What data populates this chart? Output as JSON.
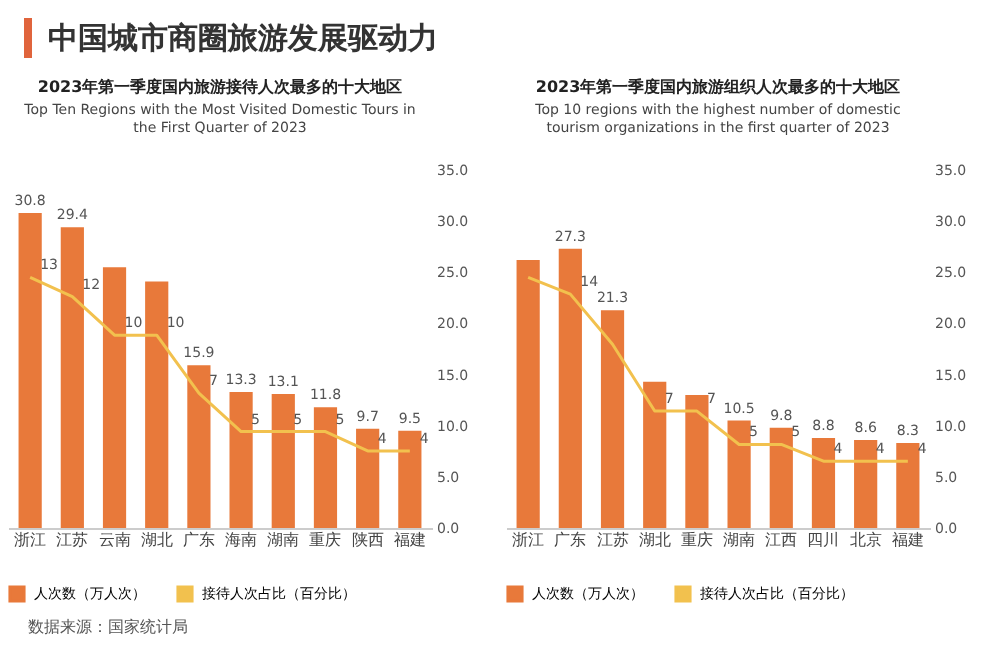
{
  "chart_data": [
    {
      "type": "bar",
      "title": "2023年第一季度国内旅游接待人次最多的十大地区",
      "subtitle": "Top Ten Regions with the Most Visited Domestic Tours in the First Quarter of 2023",
      "annotations": [
        "中国城市商圈旅游发展驱动力",
        "数据来源：国家统计局"
      ],
      "categories": [
        "浙江",
        "江苏",
        "云南",
        "湖北",
        "广东",
        "海南",
        "湖南",
        "重庆",
        "陕西",
        "福建"
      ],
      "series": [
        {
          "name": "人次数（万人次）",
          "color": "#e8793a",
          "values": [
            30.8,
            29.4,
            25.5,
            24.1,
            15.9,
            13.3,
            13.1,
            11.8,
            9.7,
            9.5
          ],
          "value_labels": [
            "30.8",
            "29.4",
            null,
            null,
            "15.9",
            "13.3",
            "13.1",
            "11.8",
            "9.7",
            "9.5"
          ]
        },
        {
          "type": "line",
          "axis": "y2",
          "name": "接待人次占比（百分比）",
          "color": "#f2c14e",
          "values": [
            13,
            12,
            10,
            10,
            7,
            5,
            5,
            5,
            4,
            4
          ],
          "value_labels": [
            "13",
            "12",
            "10",
            "10",
            "7",
            "5",
            "5",
            "5",
            "4",
            "4"
          ]
        }
      ],
      "ylim": [
        0,
        35
      ],
      "yticks": [
        {
          "value": 0,
          "label": "0.0"
        },
        {
          "value": 5,
          "label": "5.0"
        },
        {
          "value": 10,
          "label": "10.0"
        },
        {
          "value": 15,
          "label": "15.0"
        },
        {
          "value": 20,
          "label": "20.0"
        },
        {
          "value": 25,
          "label": "25.0"
        },
        {
          "value": 30,
          "label": "30.0"
        },
        {
          "value": 35,
          "label": "35.0"
        }
      ],
      "legend": "bottom",
      "grid": false
    },
    {
      "type": "bar",
      "title": "2023年第一季度国内旅游组织人次最多的十大地区",
      "subtitle": "Top 10 regions with the highest number of domestic tourism organizations in the first quarter of 2023",
      "categories": [
        "浙江",
        "广东",
        "江苏",
        "湖北",
        "重庆",
        "湖南",
        "江西",
        "四川",
        "北京",
        "福建"
      ],
      "series": [
        {
          "name": "人次数（万人次）",
          "color": "#e8793a",
          "values": [
            26.2,
            27.3,
            21.3,
            14.3,
            13.0,
            10.5,
            9.8,
            8.8,
            8.6,
            8.3
          ],
          "value_labels": [
            null,
            "27.3",
            "21.3",
            null,
            null,
            "10.5",
            "9.8",
            "8.8",
            "8.6",
            "8.3"
          ]
        },
        {
          "type": "line",
          "axis": "y2",
          "name": "接待人次占比（百分比）",
          "color": "#f2c14e",
          "values": [
            15,
            14,
            11,
            7,
            7,
            5,
            5,
            4,
            4,
            4
          ],
          "value_labels": [
            null,
            "14",
            null,
            "7",
            "7",
            "5",
            "5",
            "4",
            "4",
            "4"
          ]
        }
      ],
      "ylim": [
        0,
        35
      ],
      "yticks": [
        {
          "value": 0,
          "label": "0.0"
        },
        {
          "value": 5,
          "label": "5.0"
        },
        {
          "value": 10,
          "label": "10.0"
        },
        {
          "value": 15,
          "label": "15.0"
        },
        {
          "value": 20,
          "label": "20.0"
        },
        {
          "value": 25,
          "label": "25.0"
        },
        {
          "value": 30,
          "label": "30.0"
        },
        {
          "value": 35,
          "label": "35.0"
        }
      ],
      "legend": "bottom",
      "grid": false
    }
  ]
}
